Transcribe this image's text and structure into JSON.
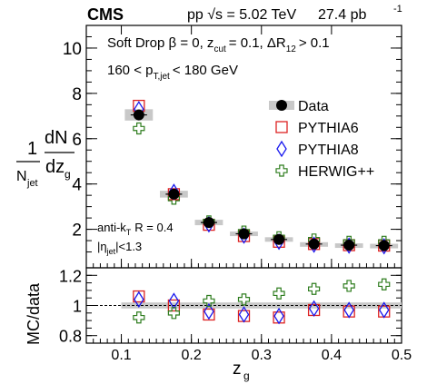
{
  "header": {
    "experiment": "CMS",
    "energy": "pp √s = 5.02 TeV",
    "lumi_value": "27.4 pb",
    "lumi_sup": "-1"
  },
  "annotations": {
    "grooming": "Soft Drop β = 0, z",
    "grooming_sub": "cut",
    "grooming_rest": "= 0.1, ΔR",
    "grooming_sub2": "12",
    "grooming_end": "> 0.1",
    "pt_left": "160 < p",
    "pt_sub": "T,jet",
    "pt_right": "< 180 GeV",
    "jet_alg": "anti-k",
    "jet_alg_sub": "T",
    "jet_radius": "R = 0.4",
    "eta_left": "|η",
    "eta_sub": "jet",
    "eta_right": "|<1.3"
  },
  "legend": {
    "position": "right",
    "items": [
      {
        "label": "Data",
        "marker": "filled-circle",
        "color": "#000000"
      },
      {
        "label": "PYTHIA6",
        "marker": "open-square",
        "color": "#dd2222"
      },
      {
        "label": "PYTHIA8",
        "marker": "open-diamond",
        "color": "#1a1aee"
      },
      {
        "label": "HERWIG++",
        "marker": "open-cross",
        "color": "#2f7d1f"
      }
    ]
  },
  "chart_data": {
    "type": "scatter",
    "x_label": "z",
    "x_label_sub": "g",
    "x_range": [
      0.05,
      0.5
    ],
    "x_ticks": [
      "0.1",
      "0.2",
      "0.3",
      "0.4",
      "0.5"
    ],
    "x_bins": [
      0.125,
      0.175,
      0.225,
      0.275,
      0.325,
      0.375,
      0.425,
      0.475
    ],
    "main_panel": {
      "y_label": "dN/dz (1/N)",
      "y_range": [
        0.3,
        11.0
      ],
      "y_ticks": [
        "2",
        "4",
        "6",
        "8",
        "10"
      ],
      "data": {
        "name": "Data",
        "values": [
          7.05,
          3.55,
          2.3,
          1.8,
          1.55,
          1.35,
          1.3,
          1.28
        ],
        "syst": [
          0.25,
          0.15,
          0.12,
          0.1,
          0.1,
          0.08,
          0.08,
          0.08
        ]
      },
      "series": [
        {
          "name": "PYTHIA6",
          "values": [
            7.45,
            3.55,
            2.2,
            1.7,
            1.45,
            1.35,
            1.3,
            1.28
          ]
        },
        {
          "name": "PYTHIA8",
          "values": [
            7.3,
            3.65,
            2.22,
            1.72,
            1.45,
            1.32,
            1.28,
            1.25
          ]
        },
        {
          "name": "HERWIG++",
          "values": [
            6.45,
            3.35,
            2.35,
            1.9,
            1.65,
            1.55,
            1.45,
            1.45
          ]
        }
      ]
    },
    "ratio_panel": {
      "y_label": "MC/data",
      "y_range": [
        0.75,
        1.25
      ],
      "y_ticks": [
        "0.8",
        "1",
        "1.2"
      ],
      "reference": 1.0,
      "band": 0.02,
      "series": [
        {
          "name": "PYTHIA6",
          "values": [
            1.06,
            1.0,
            0.94,
            0.93,
            0.92,
            0.97,
            0.96,
            0.96
          ]
        },
        {
          "name": "PYTHIA8",
          "values": [
            1.04,
            1.03,
            0.96,
            0.94,
            0.93,
            0.98,
            0.97,
            0.97
          ]
        },
        {
          "name": "HERWIG++",
          "values": [
            0.92,
            0.95,
            1.03,
            1.04,
            1.08,
            1.11,
            1.13,
            1.14
          ]
        }
      ]
    }
  }
}
